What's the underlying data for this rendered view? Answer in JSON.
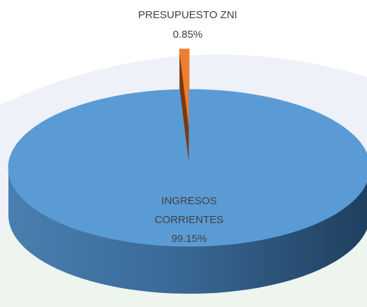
{
  "chart_data": {
    "type": "pie3d",
    "categories": [
      "PRESUPUESTO ZNI",
      "INGRESOS CORRIENTES"
    ],
    "values": [
      0.85,
      99.15
    ],
    "value_labels": [
      "0.85%",
      "99.15%"
    ],
    "colors": [
      "#ed7d31",
      "#5b9bd5"
    ],
    "explode": [
      true,
      false
    ]
  }
}
